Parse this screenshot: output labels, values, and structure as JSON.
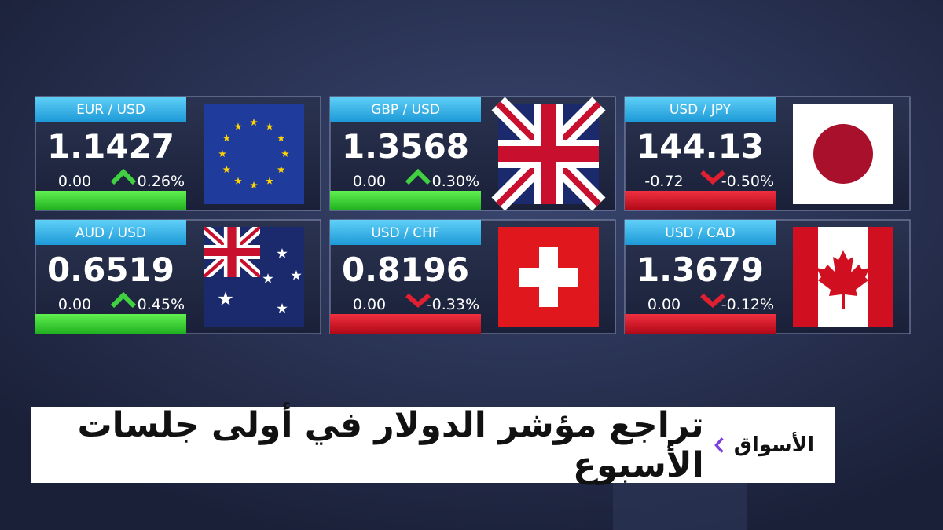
{
  "tiles": [
    {
      "pair": "EUR / USD",
      "rate": "1.1427",
      "change": "0.00",
      "change_percent": "0.26%",
      "trend": "up"
    },
    {
      "pair": "GBP / USD",
      "rate": "1.3568",
      "change": "0.00",
      "change_percent": "0.30%",
      "trend": "up"
    },
    {
      "pair": "USD / JPY",
      "rate": "144.13",
      "change": "-0.72",
      "change_percent": "-0.50%",
      "trend": "down"
    },
    {
      "pair": "AUD / USD",
      "rate": "0.6519",
      "change": "0.00",
      "change_percent": "0.45%",
      "trend": "up"
    },
    {
      "pair": "USD / CHF",
      "rate": "0.8196",
      "change": "0.00",
      "change_percent": "-0.33%",
      "trend": "down"
    },
    {
      "pair": "USD / CAD",
      "rate": "1.3679",
      "change": "0.00",
      "change_percent": "-0.12%",
      "trend": "down"
    }
  ],
  "banner": {
    "section": "الأسواق",
    "headline": "تراجع مؤشر الدولار في أولى جلسات الأسبوع"
  }
}
